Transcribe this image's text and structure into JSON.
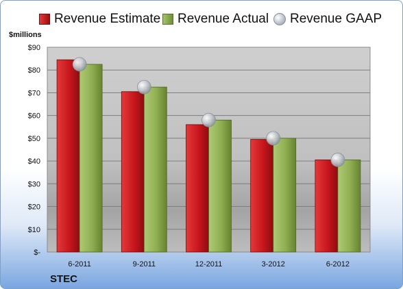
{
  "legend": {
    "estimate": "Revenue Estimate",
    "actual": "Revenue Actual",
    "gaap": "Revenue GAAP"
  },
  "unit_label": "$millions",
  "ticker": "STEC",
  "colors": {
    "estimate": "#c8161d",
    "actual": "#8fae52",
    "gaap": "#c3c8cf"
  },
  "chart_data": {
    "type": "bar",
    "categories": [
      "6-2011",
      "9-2011",
      "12-2011",
      "3-2012",
      "6-2012"
    ],
    "series": [
      {
        "name": "Revenue Estimate",
        "values": [
          84.5,
          70.5,
          56,
          49.5,
          40.5
        ]
      },
      {
        "name": "Revenue Actual",
        "values": [
          82.5,
          72.5,
          58,
          50,
          40.5
        ]
      },
      {
        "name": "Revenue GAAP",
        "values": [
          82.5,
          72.5,
          58,
          50,
          40.5
        ],
        "marker": "circle"
      }
    ],
    "yticks": [
      "$-",
      "$10",
      "$20",
      "$30",
      "$40",
      "$50",
      "$60",
      "$70",
      "$80",
      "$90"
    ],
    "ylim": [
      0,
      90
    ],
    "ylabel": "$millions",
    "grid": true,
    "legend": "top"
  }
}
